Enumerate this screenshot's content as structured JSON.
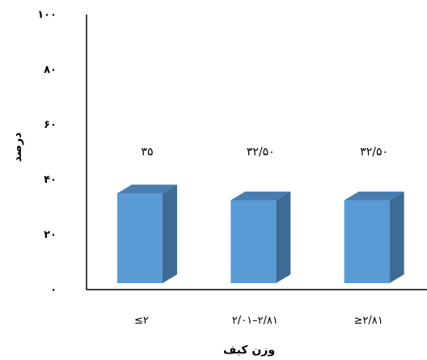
{
  "chart_data": {
    "type": "bar",
    "style": "3d-column",
    "categories": [
      "≤۲",
      "۲/۰۱–۲/۸۱",
      "≥۲/۸۱"
    ],
    "values": [
      35,
      32.5,
      32.5
    ],
    "data_labels": [
      "۳۵",
      "۳۲/۵۰",
      "۳۲/۵۰"
    ],
    "ylim": [
      0,
      100
    ],
    "yticks": [
      0,
      20,
      40,
      60,
      80,
      100
    ],
    "ytick_labels": [
      "۰",
      "۲۰",
      "۴۰",
      "۶۰",
      "۸۰",
      "۱۰۰"
    ],
    "xlabel": "وزن کیف",
    "ylabel": "درصد",
    "grid": false,
    "colors": {
      "bar_front": "#5b9bd5",
      "bar_side": "#3d6b94",
      "bar_top": "#4a7db0",
      "axis": "#000000"
    }
  }
}
